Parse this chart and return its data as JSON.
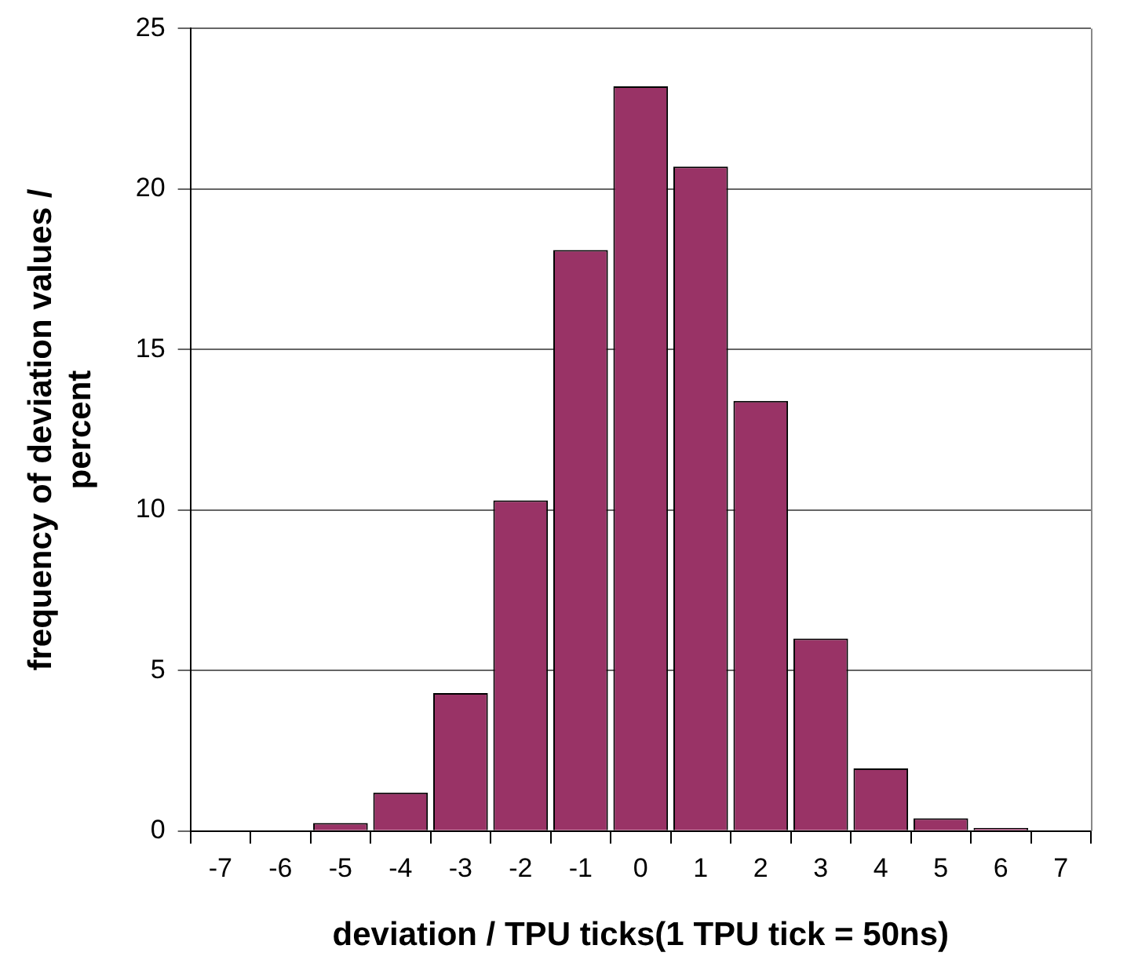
{
  "chart_data": {
    "type": "bar",
    "xlabel": "deviation / TPU ticks(1 TPU tick = 50ns)",
    "ylabel": "frequency of deviation values / percent",
    "categories": [
      "-7",
      "-6",
      "-5",
      "-4",
      "-3",
      "-2",
      "-1",
      "0",
      "1",
      "2",
      "3",
      "4",
      "5",
      "6",
      "7"
    ],
    "values": [
      0,
      0,
      0.25,
      1.2,
      4.3,
      10.3,
      18.1,
      23.2,
      20.7,
      13.4,
      6.0,
      1.95,
      0.4,
      0.1,
      0
    ],
    "color": "#993366",
    "ylim": [
      0,
      25
    ],
    "yticks": [
      0,
      5,
      10,
      15,
      20,
      25
    ],
    "grid": "y",
    "legend": false
  }
}
